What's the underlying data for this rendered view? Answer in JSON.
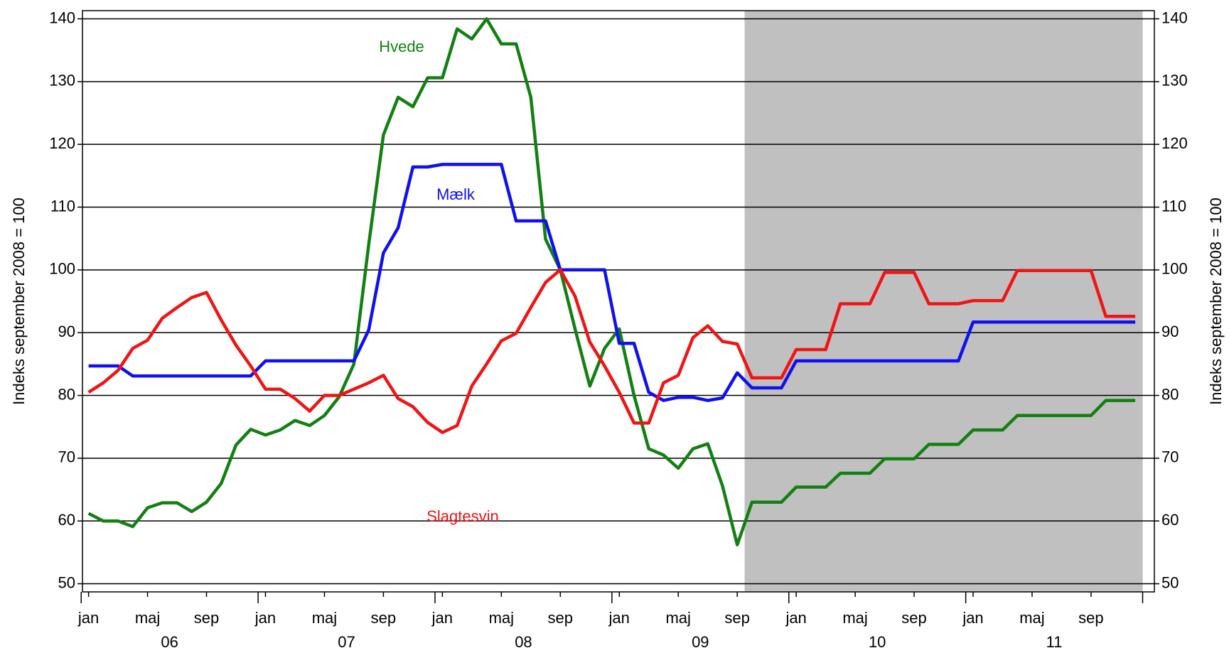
{
  "chart_data": {
    "type": "line",
    "ylabel": "Indeks september 2008 = 100",
    "y2label": "Indeks september 2008 = 100",
    "categories": [
      "jan",
      null,
      null,
      null,
      "maj",
      null,
      null,
      null,
      "sep",
      null,
      null,
      null,
      "jan",
      null,
      null,
      null,
      "maj",
      null,
      null,
      null,
      "sep",
      null,
      null,
      null,
      "jan",
      null,
      null,
      null,
      "maj",
      null,
      null,
      null,
      "sep",
      null,
      null,
      null,
      "jan",
      null,
      null,
      null,
      "maj",
      null,
      null,
      null,
      "sep",
      null,
      null,
      null,
      "jan",
      null,
      null,
      null,
      "maj",
      null,
      null,
      null,
      "sep",
      null,
      null,
      null,
      "jan",
      null,
      null,
      null,
      "maj",
      null,
      null,
      null,
      "sep",
      null,
      null,
      null
    ],
    "year_labels": [
      "06",
      "07",
      "08",
      "09",
      "10",
      "11"
    ],
    "shaded_categories": [
      45,
      71
    ],
    "shade_color": "#c0c0c0",
    "series": [
      {
        "name": "Hvede",
        "color": "#138013",
        "values": [
          61.2,
          60,
          60,
          59.1,
          62.1,
          62.9,
          62.9,
          61.5,
          63,
          66,
          72.1,
          74.6,
          73.7,
          74.5,
          76,
          75.2,
          76.8,
          79.8,
          85,
          104,
          121.5,
          127.5,
          126,
          130.6,
          130.6,
          138.4,
          136.8,
          140,
          136,
          136,
          127.5,
          104.9,
          100,
          90.6,
          81.5,
          87.5,
          90.6,
          80,
          71.5,
          70.5,
          68.4,
          71.5,
          72.3,
          65.6,
          56.2,
          63,
          63,
          63,
          65.4,
          65.4,
          65.4,
          67.6,
          67.6,
          67.6,
          69.9,
          69.9,
          69.9,
          72.2,
          72.2,
          72.2,
          74.5,
          74.5,
          74.5,
          76.8,
          76.8,
          76.8,
          76.8,
          76.8,
          76.8,
          79.2,
          79.2,
          79.2
        ]
      },
      {
        "name": "Mælk",
        "color": "#1010f0",
        "values": [
          84.7,
          84.7,
          84.7,
          83.1,
          83.1,
          83.1,
          83.1,
          83.1,
          83.1,
          83.1,
          83.1,
          83.1,
          85.5,
          85.5,
          85.5,
          85.5,
          85.5,
          85.5,
          85.5,
          90.4,
          102.7,
          106.7,
          116.4,
          116.4,
          116.8,
          116.8,
          116.8,
          116.8,
          116.8,
          107.8,
          107.8,
          107.8,
          100,
          100,
          100,
          100,
          88.3,
          88.3,
          80.5,
          79.2,
          79.7,
          79.7,
          79.2,
          79.6,
          83.6,
          81.2,
          81.2,
          81.2,
          85.5,
          85.5,
          85.5,
          85.5,
          85.5,
          85.5,
          85.5,
          85.5,
          85.5,
          85.5,
          85.5,
          85.5,
          91.7,
          91.7,
          91.7,
          91.7,
          91.7,
          91.7,
          91.7,
          91.7,
          91.7,
          91.7,
          91.7,
          91.7
        ]
      },
      {
        "name": "Slagtesvin",
        "color": "#f01414",
        "values": [
          80.5,
          82,
          84,
          87.5,
          88.8,
          92.3,
          94,
          95.6,
          96.4,
          92,
          88,
          84.7,
          81,
          81,
          79.5,
          77.5,
          80,
          80,
          81,
          82,
          83.2,
          79.5,
          78.2,
          75.7,
          74.1,
          75.2,
          81.5,
          85,
          88.7,
          89.9,
          94,
          98,
          100,
          95.8,
          88.5,
          84.7,
          80.5,
          75.6,
          75.6,
          82,
          83.2,
          89.2,
          91.1,
          88.6,
          88.2,
          82.8,
          82.8,
          82.8,
          87.3,
          87.3,
          87.3,
          94.6,
          94.6,
          94.6,
          99.6,
          99.6,
          99.6,
          94.6,
          94.6,
          94.6,
          95.1,
          95.1,
          95.1,
          99.9,
          99.9,
          99.9,
          99.9,
          99.9,
          99.9,
          92.6,
          92.6,
          92.6
        ]
      }
    ],
    "ylim": [
      48.7,
      141.3
    ],
    "yticks": [
      50,
      60,
      70,
      80,
      90,
      100,
      110,
      120,
      130,
      140
    ],
    "y2lim": [
      48.7,
      141.3
    ],
    "y2ticks": [
      50,
      60,
      70,
      80,
      90,
      100,
      110,
      120,
      130,
      140
    ],
    "grid": true
  }
}
